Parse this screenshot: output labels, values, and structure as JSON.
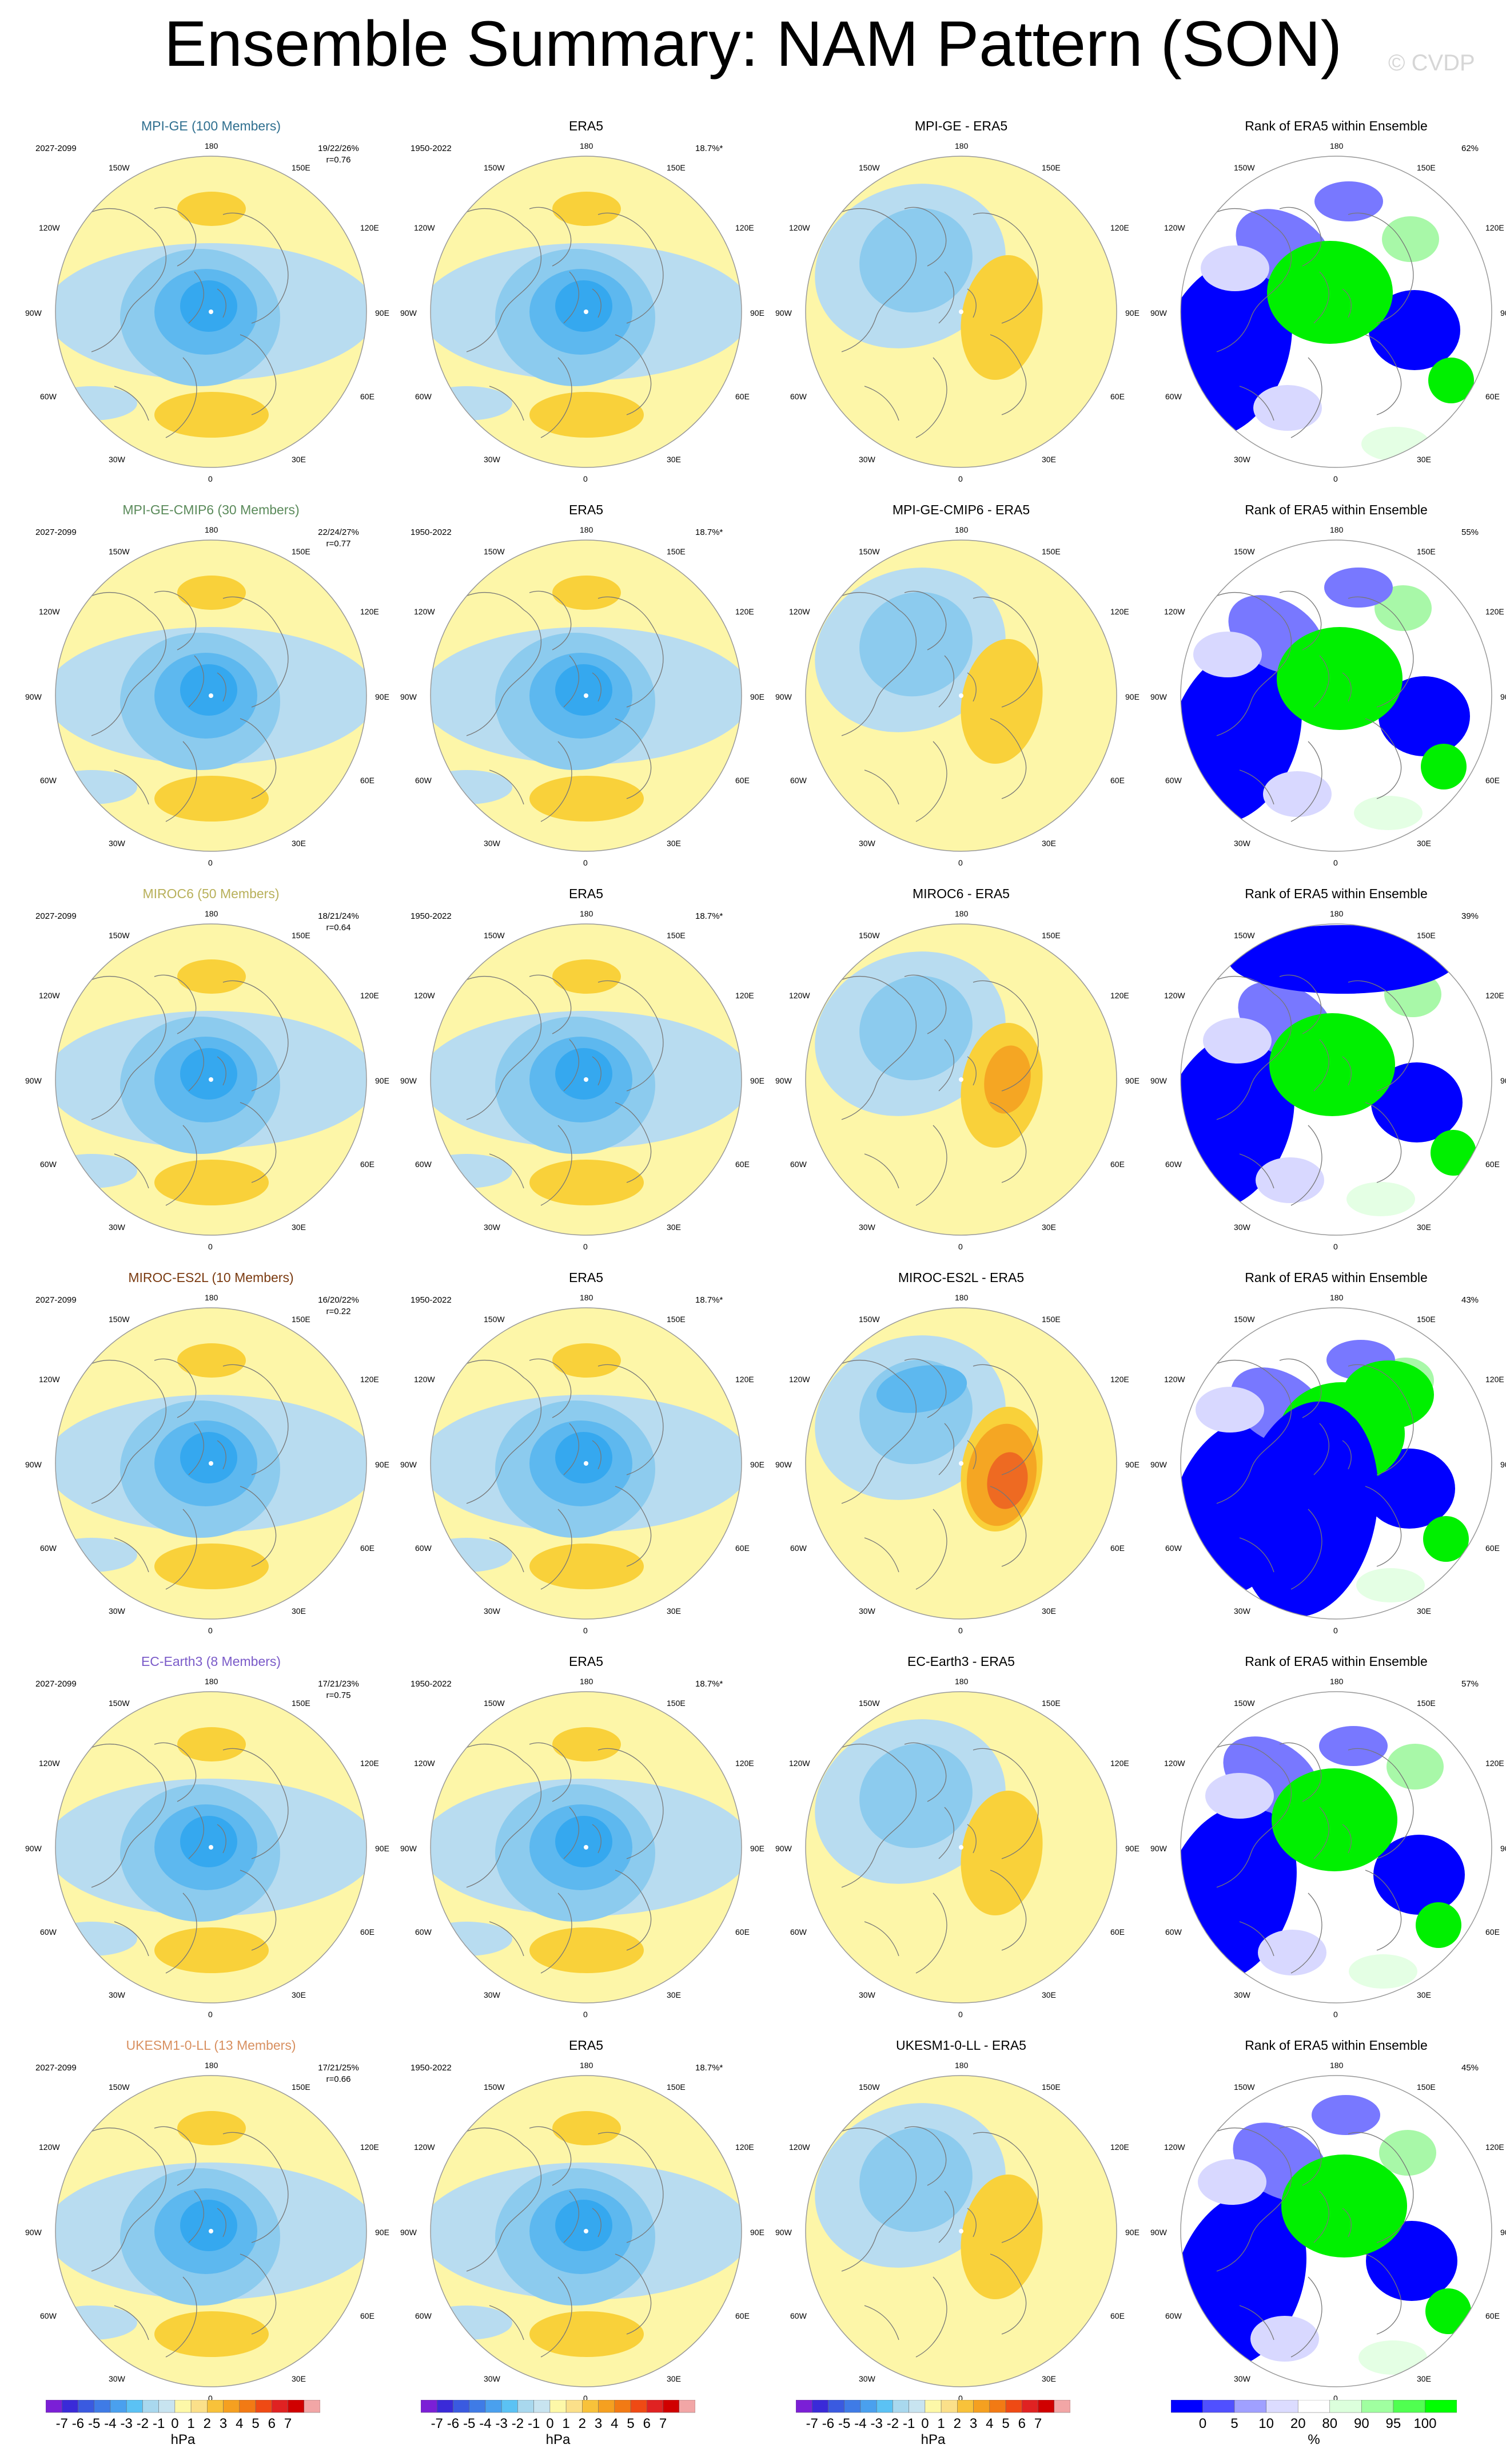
{
  "title": "Ensemble Summary: NAM Pattern (SON)",
  "watermark": "© CVDP",
  "longitude_labels": {
    "top": "180",
    "bottom": "0",
    "left": "90W",
    "right": "90E",
    "upper_left_1": "150W",
    "upper_left_2": "120W",
    "upper_right_1": "150E",
    "upper_right_2": "120E",
    "lower_left_1": "60W",
    "lower_left_2": "30W",
    "lower_right_1": "60E",
    "lower_right_2": "30E"
  },
  "column_titles": {
    "era5": "ERA5",
    "rank": "Rank of ERA5 within Ensemble"
  },
  "periods": {
    "model": "2027-2099",
    "obs": "1950-2022"
  },
  "era5_variance": "18.7%*",
  "rows": [
    {
      "model": "MPI-GE (100 Members)",
      "diff_title": "MPI-GE - ERA5",
      "stats": "19/22/26%",
      "r": "r=0.76",
      "rank_pct": "62%",
      "color": "#2f6f8f"
    },
    {
      "model": "MPI-GE-CMIP6 (30 Members)",
      "diff_title": "MPI-GE-CMIP6 - ERA5",
      "stats": "22/24/27%",
      "r": "r=0.77",
      "rank_pct": "55%",
      "color": "#5a8a5a"
    },
    {
      "model": "MIROC6 (50 Members)",
      "diff_title": "MIROC6 - ERA5",
      "stats": "18/21/24%",
      "r": "r=0.64",
      "rank_pct": "39%",
      "color": "#b8b05a"
    },
    {
      "model": "MIROC-ES2L (10 Members)",
      "diff_title": "MIROC-ES2L - ERA5",
      "stats": "16/20/22%",
      "r": "r=0.22",
      "rank_pct": "43%",
      "color": "#7a3a10"
    },
    {
      "model": "EC-Earth3 (8 Members)",
      "diff_title": "EC-Earth3 - ERA5",
      "stats": "17/21/23%",
      "r": "r=0.75",
      "rank_pct": "57%",
      "color": "#7a5ac8"
    },
    {
      "model": "UKESM1-0-LL (13 Members)",
      "diff_title": "UKESM1-0-LL - ERA5",
      "stats": "17/21/25%",
      "r": "r=0.66",
      "rank_pct": "45%",
      "color": "#d89060"
    }
  ],
  "colorbar_hpa": {
    "unit": "hPa",
    "ticks": [
      "-7",
      "-6",
      "-5",
      "-4",
      "-3",
      "-2",
      "-1",
      "0",
      "1",
      "2",
      "3",
      "4",
      "5",
      "6",
      "7"
    ],
    "colors": [
      "#7b1fd6",
      "#3a2ad8",
      "#3a5ae0",
      "#3f7be6",
      "#4aa0ee",
      "#5bc2f4",
      "#a9d8ee",
      "#c8e4f0",
      "#fdf8a8",
      "#fbe08a",
      "#f8c23a",
      "#f5a020",
      "#f27a14",
      "#ef4a14",
      "#e02222",
      "#d00000",
      "#f2a6a6"
    ]
  },
  "colorbar_rank": {
    "unit": "%",
    "ticks": [
      "0",
      "5",
      "10",
      "20",
      "80",
      "90",
      "95",
      "100"
    ],
    "colors": [
      "#0000ff",
      "#5050ff",
      "#a0a0ff",
      "#dcdcff",
      "#ffffff",
      "#dcffdc",
      "#a0ffa0",
      "#50ff50",
      "#00ff00"
    ]
  }
}
